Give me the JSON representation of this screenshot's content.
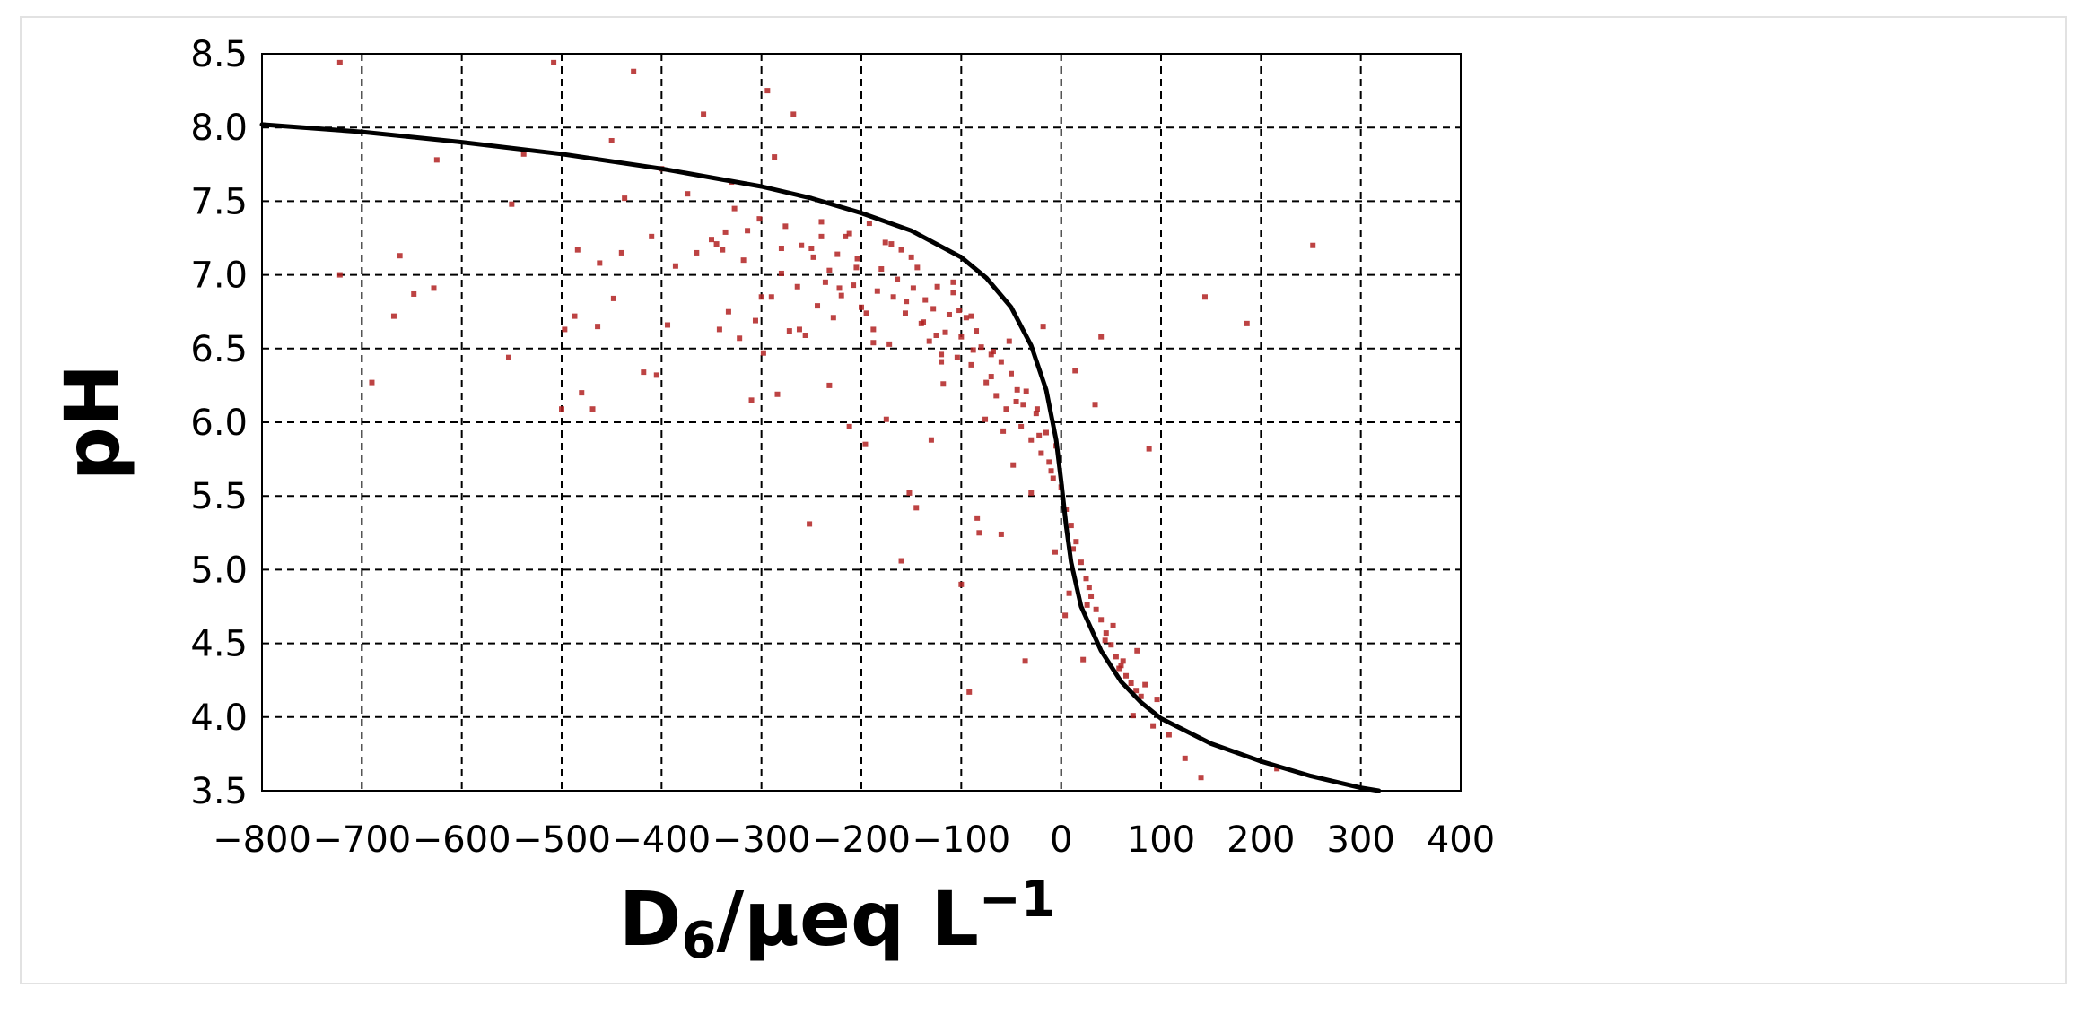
{
  "chart_data": {
    "type": "scatter",
    "title": "",
    "xlabel": {
      "main": "D",
      "subscript": "6",
      "unit": "/μeq L",
      "superscript": "−1"
    },
    "ylabel": "pH",
    "xlim": [
      -800,
      400
    ],
    "ylim": [
      3.5,
      8.5
    ],
    "x_ticks": [
      -800,
      -700,
      -600,
      -500,
      -400,
      -300,
      -200,
      -100,
      0,
      100,
      200,
      300,
      400
    ],
    "x_tick_labels": [
      "−800",
      "−700",
      "−600",
      "−500",
      "−400",
      "−300",
      "−200",
      "−100",
      "0",
      "100",
      "200",
      "300",
      "400"
    ],
    "y_ticks": [
      3.5,
      4.0,
      4.5,
      5.0,
      5.5,
      6.0,
      6.5,
      7.0,
      7.5,
      8.0,
      8.5
    ],
    "y_tick_labels": [
      "3.5",
      "4.0",
      "4.5",
      "5.0",
      "5.5",
      "6.0",
      "6.5",
      "7.0",
      "7.5",
      "8.0",
      "8.5"
    ],
    "grid": true,
    "legend": "none",
    "series": [
      {
        "kind": "line",
        "color": "#000000",
        "x": [
          -800,
          -700,
          -600,
          -500,
          -400,
          -300,
          -250,
          -200,
          -150,
          -100,
          -75,
          -50,
          -30,
          -15,
          -5,
          0,
          5,
          10,
          20,
          40,
          60,
          80,
          100,
          150,
          200,
          250,
          300,
          318
        ],
        "y": [
          8.02,
          7.97,
          7.9,
          7.82,
          7.72,
          7.6,
          7.52,
          7.42,
          7.3,
          7.12,
          6.98,
          6.78,
          6.52,
          6.22,
          5.88,
          5.6,
          5.3,
          5.05,
          4.75,
          4.45,
          4.24,
          4.1,
          3.99,
          3.82,
          3.7,
          3.6,
          3.52,
          3.5
        ]
      },
      {
        "kind": "scatter",
        "color": "#b22222",
        "x": [
          -722,
          -722,
          -690,
          -668,
          -662,
          -648,
          -628,
          -625,
          -553,
          -550,
          -538,
          -508,
          -500,
          -497,
          -487,
          -484,
          -480,
          -469,
          -464,
          -462,
          -450,
          -448,
          -440,
          -437,
          -428,
          -418,
          -410,
          -405,
          -400,
          -394,
          -386,
          -374,
          -365,
          -358,
          -350,
          -345,
          -342,
          -339,
          -336,
          -333,
          -330,
          -327,
          -322,
          -318,
          -314,
          -310,
          -306,
          -302,
          -298,
          -294,
          -290,
          -287,
          -284,
          -280,
          -276,
          -272,
          -268,
          -264,
          -260,
          -256,
          -252,
          -248,
          -244,
          -240,
          -236,
          -232,
          -228,
          -224,
          -220,
          -216,
          -212,
          -208,
          -204,
          -200,
          -196,
          -192,
          -188,
          -184,
          -180,
          -176,
          -172,
          -168,
          -164,
          -160,
          -156,
          -152,
          -148,
          -144,
          -140,
          -136,
          -132,
          -128,
          -124,
          -120,
          -116,
          -112,
          -108,
          -104,
          -100,
          -95,
          -90,
          -85,
          -80,
          -75,
          -70,
          -65,
          -60,
          -55,
          -50,
          -45,
          -40,
          -35,
          -30,
          -25,
          -20,
          -15,
          -10,
          -5,
          0,
          5,
          10,
          15,
          20,
          25,
          30,
          35,
          40,
          45,
          50,
          55,
          60,
          65,
          70,
          75,
          80,
          88,
          96,
          140,
          144,
          186,
          216,
          252,
          -160,
          -145,
          -130,
          -118,
          -100,
          -92,
          -84,
          -76,
          -60,
          -48,
          -36,
          -24,
          -12,
          8,
          22,
          34,
          52,
          72,
          -250,
          -232,
          -212,
          -195,
          -175,
          -150,
          -125,
          -108,
          -90,
          -82,
          -68,
          -58,
          -44,
          -30,
          -18,
          -6,
          4,
          14,
          28,
          40,
          58,
          76,
          92,
          108,
          124,
          -300,
          -280,
          -262,
          -240,
          -222,
          -205,
          -188,
          -170,
          -155,
          -138,
          -120,
          -102,
          -88,
          -70,
          -52,
          -38,
          -22,
          -8,
          12,
          26,
          44,
          62,
          84
        ],
        "y": [
          8.44,
          7.0,
          6.27,
          6.72,
          7.13,
          6.87,
          6.91,
          7.78,
          6.44,
          7.48,
          7.82,
          8.44,
          6.09,
          6.63,
          6.72,
          7.17,
          6.2,
          6.09,
          6.65,
          7.08,
          7.91,
          6.84,
          7.15,
          7.52,
          8.38,
          6.34,
          7.26,
          6.32,
          7.72,
          6.66,
          7.06,
          7.55,
          7.15,
          8.09,
          7.24,
          7.21,
          6.63,
          7.17,
          7.29,
          6.75,
          7.63,
          7.45,
          6.57,
          7.1,
          7.3,
          6.15,
          6.69,
          7.38,
          6.47,
          8.25,
          6.85,
          7.8,
          6.19,
          7.01,
          7.33,
          6.62,
          8.09,
          6.92,
          7.2,
          6.59,
          5.31,
          7.12,
          6.79,
          7.36,
          6.95,
          7.03,
          6.71,
          7.14,
          6.86,
          7.26,
          5.97,
          6.93,
          7.11,
          6.78,
          5.85,
          7.35,
          6.63,
          6.89,
          7.04,
          7.22,
          6.53,
          6.85,
          6.97,
          7.17,
          6.74,
          5.52,
          6.91,
          7.05,
          6.67,
          6.83,
          6.55,
          6.77,
          6.92,
          6.46,
          6.61,
          6.73,
          6.88,
          6.44,
          6.58,
          6.71,
          6.39,
          6.62,
          6.51,
          6.27,
          6.46,
          6.18,
          6.41,
          6.09,
          6.33,
          6.14,
          5.97,
          6.21,
          5.88,
          6.06,
          5.79,
          5.93,
          5.67,
          5.84,
          5.56,
          5.41,
          5.3,
          5.19,
          5.05,
          4.94,
          4.82,
          4.73,
          4.66,
          4.57,
          4.49,
          4.41,
          4.35,
          4.28,
          4.23,
          4.18,
          4.14,
          5.82,
          4.12,
          3.59,
          6.85,
          6.67,
          3.65,
          7.2,
          5.06,
          5.42,
          5.88,
          6.26,
          4.9,
          4.17,
          5.35,
          6.02,
          5.24,
          5.71,
          4.38,
          6.09,
          5.73,
          4.84,
          4.39,
          6.12,
          4.62,
          4.01,
          7.18,
          6.25,
          7.28,
          6.74,
          6.02,
          7.12,
          6.59,
          6.95,
          6.72,
          5.25,
          6.48,
          5.94,
          6.22,
          5.52,
          6.65,
          5.12,
          4.69,
          6.35,
          4.88,
          6.58,
          4.33,
          4.45,
          3.94,
          3.88,
          3.72,
          6.85,
          7.18,
          6.63,
          7.26,
          6.91,
          7.05,
          6.54,
          7.21,
          6.82,
          6.68,
          6.41,
          6.76,
          6.49,
          6.31,
          6.55,
          6.12,
          5.91,
          5.62,
          5.14,
          4.76,
          4.52,
          4.38,
          4.22
        ]
      }
    ]
  }
}
